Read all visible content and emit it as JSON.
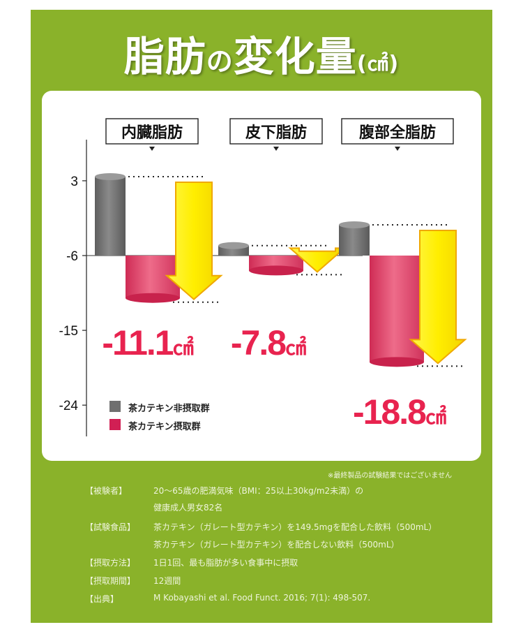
{
  "title": {
    "part1": "脂肪",
    "part2": "の",
    "part3": "変化量",
    "unit": "(㎠)"
  },
  "groups": [
    "内臓脂肪",
    "皮下脂肪",
    "腹部全脂肪"
  ],
  "chart_data": {
    "type": "bar",
    "categories": [
      "内臓脂肪",
      "皮下脂肪",
      "腹部全脂肪"
    ],
    "series": [
      {
        "name": "茶カテキン非摂取群",
        "values": [
          3.5,
          -4.8,
          -2.3
        ]
      },
      {
        "name": "茶カテキン摂取群",
        "values": [
          -11.1,
          -7.8,
          -18.8
        ]
      }
    ],
    "differences": [
      "-11.1",
      "-7.8",
      "-18.8"
    ],
    "difference_unit": "㎠",
    "yticks": [
      "3",
      "-6",
      "-15",
      "-24"
    ],
    "ylim": [
      -24,
      6
    ],
    "colors": {
      "non_intake": "#777777",
      "intake": "#e84a6f",
      "arrow": "#ffee00",
      "label": "#e8234f"
    }
  },
  "legend": [
    {
      "label": "茶カテキン非摂取群",
      "color": "#6f6f6f"
    },
    {
      "label": "茶カテキン摂取群",
      "color": "#d11f54"
    }
  ],
  "footnote": "※最終製品の試験結果ではございません",
  "details": [
    {
      "label": "【被験者】",
      "lines": [
        "20～65歳の肥満気味（BMI：25以上30kg/m2未満）の",
        "健康成人男女82名"
      ]
    },
    {
      "label": "【試験食品】",
      "lines": [
        "茶カテキン（ガレート型カテキン）を149.5mgを配合した飲料（500mL）",
        "茶カテキン（ガレート型カテキン）を配合しない飲料（500mL）"
      ]
    },
    {
      "label": "【摂取方法】",
      "lines": [
        "1日1回、最も脂肪が多い食事中に摂取"
      ]
    },
    {
      "label": "【摂取期間】",
      "lines": [
        "12週間"
      ]
    },
    {
      "label": "【出典】",
      "lines": [
        "M Kobayashi et al. Food Funct. 2016; 7(1): 498-507."
      ]
    }
  ]
}
